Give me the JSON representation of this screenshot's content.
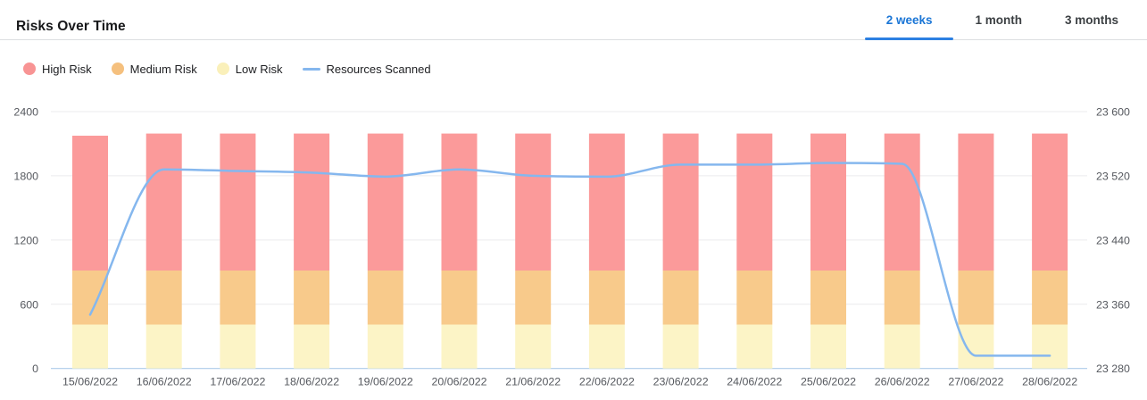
{
  "header": {
    "title": "Risks Over Time"
  },
  "tabs": [
    {
      "label": "2 weeks",
      "active": true
    },
    {
      "label": "1 month",
      "active": false
    },
    {
      "label": "3 months",
      "active": false
    }
  ],
  "legend": [
    {
      "label": "High Risk",
      "type": "dot",
      "color": "#f89494"
    },
    {
      "label": "Medium Risk",
      "type": "dot",
      "color": "#f5c07e"
    },
    {
      "label": "Low Risk",
      "type": "dot",
      "color": "#faf0ba"
    },
    {
      "label": "Resources Scanned",
      "type": "line",
      "color": "#85b7ee"
    }
  ],
  "colors": {
    "tab_active_text": "#1b76d6",
    "tab_underline": "#2c80e2",
    "divider": "#dcdee1",
    "gridline": "#ebebed",
    "axis_line": "#aecbea"
  },
  "chart_data": {
    "type": "bar",
    "subtype": "stacked-bars-with-line-overlay",
    "title": "Risks Over Time",
    "grid": "horizontal",
    "legend_position": "top-left",
    "categories": [
      "15/06/2022",
      "16/06/2022",
      "17/06/2022",
      "18/06/2022",
      "19/06/2022",
      "20/06/2022",
      "21/06/2022",
      "22/06/2022",
      "23/06/2022",
      "24/06/2022",
      "25/06/2022",
      "26/06/2022",
      "27/06/2022",
      "28/06/2022"
    ],
    "series": [
      {
        "name": "Low Risk",
        "kind": "bar",
        "color": "#fcf4c6",
        "values": [
          410,
          410,
          410,
          410,
          410,
          410,
          410,
          410,
          410,
          410,
          410,
          410,
          410,
          410
        ]
      },
      {
        "name": "Medium Risk",
        "kind": "bar",
        "color": "#f8ca8b",
        "values": [
          505,
          505,
          505,
          505,
          505,
          505,
          505,
          505,
          505,
          505,
          505,
          505,
          505,
          505
        ]
      },
      {
        "name": "High Risk",
        "kind": "bar",
        "color": "#fb9a9a",
        "values": [
          1260,
          1280,
          1280,
          1280,
          1280,
          1280,
          1280,
          1280,
          1280,
          1280,
          1280,
          1280,
          1280,
          1280
        ]
      },
      {
        "name": "Resources Scanned",
        "kind": "line",
        "axis": "right",
        "color": "#85b7ee",
        "values": [
          23347,
          23528,
          23526,
          23524,
          23519,
          23528,
          23520,
          23519,
          23534,
          23534,
          23536,
          23535,
          23296,
          23296
        ]
      }
    ],
    "left_axis": {
      "range": [
        0,
        2400
      ],
      "ticks": [
        {
          "value": 0,
          "label": "0"
        },
        {
          "value": 600,
          "label": "600"
        },
        {
          "value": 1200,
          "label": "1200"
        },
        {
          "value": 1800,
          "label": "1800"
        },
        {
          "value": 2400,
          "label": "2400"
        }
      ]
    },
    "right_axis": {
      "range": [
        23280,
        23600
      ],
      "ticks": [
        {
          "value": 23280,
          "label": "23 280"
        },
        {
          "value": 23360,
          "label": "23 360"
        },
        {
          "value": 23440,
          "label": "23 440"
        },
        {
          "value": 23520,
          "label": "23 520"
        },
        {
          "value": 23600,
          "label": "23 600"
        }
      ]
    }
  }
}
